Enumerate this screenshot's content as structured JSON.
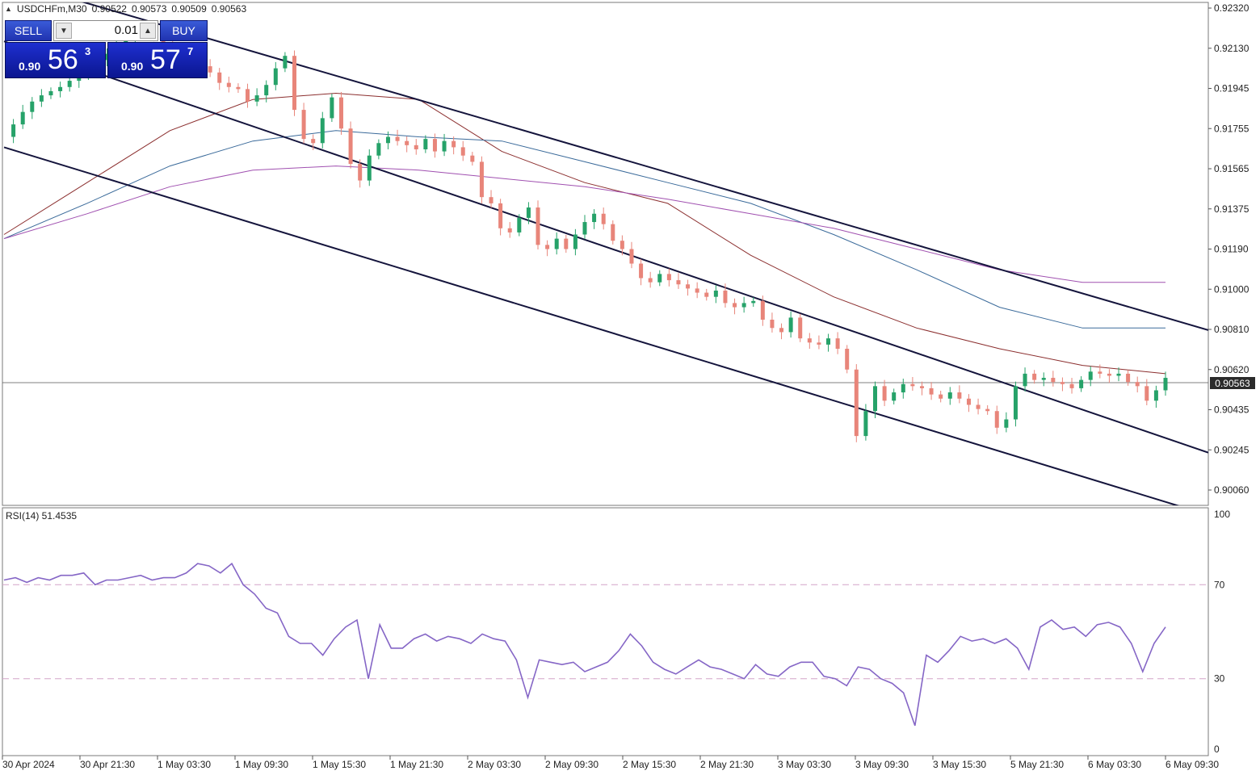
{
  "header": {
    "symbol": "USDCHFm,M30",
    "open": "0.90522",
    "high": "0.90573",
    "low": "0.90509",
    "close": "0.90563"
  },
  "trade_panel": {
    "sell_label": "SELL",
    "buy_label": "BUY",
    "lot_value": "0.01",
    "sell_price_prefix": "0.90",
    "sell_price_big": "56",
    "sell_price_sup": "3",
    "buy_price_prefix": "0.90",
    "buy_price_big": "57",
    "buy_price_sup": "7",
    "button_color": "#2b44c8"
  },
  "current_price_label": "0.90563",
  "rsi": {
    "label": "RSI(14) 51.4535",
    "levels": [
      "100",
      "70",
      "30",
      "0"
    ]
  },
  "chart_data": {
    "type": "candlestick",
    "price_axis_ticks": [
      "0.92320",
      "0.92130",
      "0.91945",
      "0.91755",
      "0.91565",
      "0.91375",
      "0.91190",
      "0.91000",
      "0.90810",
      "0.90620",
      "0.90435",
      "0.90245",
      "0.90060"
    ],
    "time_axis_ticks": [
      "30 Apr 2024",
      "30 Apr 21:30",
      "1 May 03:30",
      "1 May 09:30",
      "1 May 15:30",
      "1 May 21:30",
      "2 May 03:30",
      "2 May 09:30",
      "2 May 15:30",
      "2 May 21:30",
      "3 May 03:30",
      "3 May 09:30",
      "3 May 15:30",
      "5 May 21:30",
      "6 May 03:30",
      "6 May 09:30"
    ],
    "ylim": [
      0.9002,
      0.9234
    ],
    "current_price": 0.90563,
    "up_color": "#26a269",
    "down_color": "#e8857a",
    "price_path": [
      0.9172,
      0.9178,
      0.9184,
      0.9189,
      0.9192,
      0.9194,
      0.9196,
      0.9199,
      0.9202,
      0.9205,
      0.9209,
      0.9212,
      0.9216,
      0.9219,
      0.9222,
      0.9224,
      0.9221,
      0.9217,
      0.9214,
      0.9211,
      0.9209,
      0.9206,
      0.9203,
      0.9198,
      0.9196,
      0.9195,
      0.9189,
      0.9192,
      0.9197,
      0.9205,
      0.9211,
      0.9185,
      0.9171,
      0.9169,
      0.9181,
      0.9191,
      0.9176,
      0.9159,
      0.9151,
      0.9163,
      0.9169,
      0.9172,
      0.917,
      0.9168,
      0.9166,
      0.9171,
      0.9165,
      0.917,
      0.9167,
      0.9163,
      0.916,
      0.9143,
      0.914,
      0.9128,
      0.9126,
      0.9133,
      0.9138,
      0.912,
      0.9118,
      0.9123,
      0.9118,
      0.9125,
      0.9131,
      0.9135,
      0.913,
      0.9122,
      0.9118,
      0.9111,
      0.9104,
      0.9102,
      0.9106,
      0.9103,
      0.9101,
      0.9099,
      0.9097,
      0.9095,
      0.9098,
      0.9092,
      0.909,
      0.9092,
      0.9093,
      0.9084,
      0.908,
      0.9078,
      0.9085,
      0.9075,
      0.9073,
      0.9072,
      0.9075,
      0.907,
      0.906,
      0.9028,
      0.904,
      0.9052,
      0.9045,
      0.9049,
      0.9053,
      0.9052,
      0.9051,
      0.9048,
      0.9046,
      0.9049,
      0.9046,
      0.9043,
      0.9041,
      0.904,
      0.9032,
      0.9036,
      0.9052,
      0.9058,
      0.9055,
      0.9056,
      0.9054,
      0.9053,
      0.9051,
      0.9055,
      0.9059,
      0.9058,
      0.9057,
      0.9058,
      0.9054,
      0.9052,
      0.9045,
      0.905,
      0.9056
    ],
    "moving_averages": [
      {
        "color": "#8b2e2e",
        "points": [
          0.9125,
          0.915,
          0.9175,
          0.919,
          0.9193,
          0.919,
          0.9165,
          0.915,
          0.914,
          0.9115,
          0.9095,
          0.908,
          0.907,
          0.9062,
          0.9058
        ]
      },
      {
        "color": "#3a6a9a",
        "points": [
          0.9123,
          0.914,
          0.9158,
          0.917,
          0.9175,
          0.9172,
          0.917,
          0.916,
          0.915,
          0.914,
          0.9125,
          0.9108,
          0.909,
          0.908,
          0.908
        ]
      },
      {
        "color": "#a050b0",
        "points": [
          0.9123,
          0.9135,
          0.9148,
          0.9156,
          0.9158,
          0.9156,
          0.9152,
          0.9148,
          0.9142,
          0.9135,
          0.9128,
          0.9118,
          0.9108,
          0.9102,
          0.9102
        ]
      }
    ],
    "channel_lines": [
      {
        "color": "#14143c",
        "from": [
          0.9248,
          0
        ],
        "to": [
          0.9079,
          1
        ]
      },
      {
        "color": "#14143c",
        "from": [
          0.9218,
          0
        ],
        "to": [
          0.902,
          1
        ]
      },
      {
        "color": "#14143c",
        "from": [
          0.9167,
          0
        ],
        "to": [
          0.899,
          1
        ]
      }
    ],
    "rsi_series": {
      "name": "RSI(14)",
      "color": "#8566c6",
      "values": [
        72,
        73,
        71,
        73,
        72,
        74,
        74,
        75,
        70,
        72,
        72,
        73,
        74,
        72,
        73,
        73,
        75,
        79,
        78,
        75,
        79,
        70,
        66,
        60,
        58,
        48,
        45,
        45,
        40,
        47,
        52,
        55,
        30,
        53,
        43,
        43,
        47,
        49,
        46,
        48,
        47,
        45,
        49,
        47,
        46,
        38,
        22,
        38,
        37,
        36,
        37,
        33,
        35,
        37,
        42,
        49,
        44,
        37,
        34,
        32,
        35,
        38,
        35,
        34,
        32,
        30,
        36,
        32,
        31,
        35,
        37,
        37,
        31,
        30,
        27,
        35,
        34,
        30,
        28,
        24,
        10,
        40,
        37,
        42,
        48,
        46,
        47,
        45,
        47,
        43,
        34,
        52,
        55,
        51,
        52,
        48,
        53,
        54,
        52,
        45,
        33,
        45,
        52
      ],
      "ylim": [
        0,
        100
      ],
      "levels": [
        70,
        30
      ],
      "current": 51.4535
    }
  }
}
